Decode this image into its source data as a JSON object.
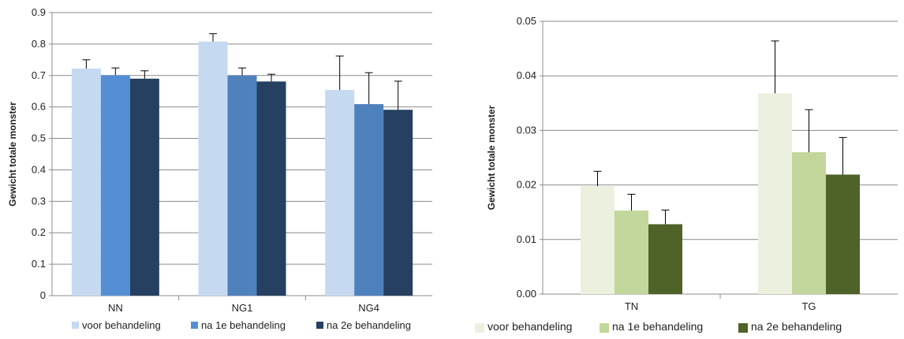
{
  "chart_data": [
    {
      "type": "bar",
      "title": "",
      "xlabel": "",
      "ylabel": "Gewicht totale monster",
      "ylim": [
        0,
        0.9
      ],
      "yticks": [
        "0",
        "0.1",
        "0.2",
        "0.3",
        "0.4",
        "0.5",
        "0.6",
        "0.7",
        "0.8",
        "0.9"
      ],
      "grid": true,
      "legend_position": "bottom",
      "categories": [
        "NN",
        "NG1",
        "NG4"
      ],
      "series": [
        {
          "name": "voor behandeling",
          "color": "#c5d9f1",
          "values": [
            0.722,
            0.808,
            0.654
          ],
          "errors": [
            0.028,
            0.025,
            0.108
          ]
        },
        {
          "name": "na 1e  behandeling",
          "color": "#558ed5",
          "values": [
            0.701,
            0.7,
            0.609
          ],
          "errors": [
            0.023,
            0.024,
            0.1
          ]
        },
        {
          "name": "na 2e  behandeling",
          "color": "#254061",
          "values": [
            0.69,
            0.681,
            0.591
          ],
          "errors": [
            0.025,
            0.023,
            0.091
          ]
        }
      ],
      "legend_colors_note": "",
      "series_colors_by_category": [
        [
          "#c5d9f1",
          "#558ed5",
          "#254061"
        ],
        [
          "#c5d9f1",
          "#4f81bd",
          "#254061"
        ],
        [
          "#c5d9f1",
          "#4f81bd",
          "#254061"
        ]
      ]
    },
    {
      "type": "bar",
      "title": "",
      "xlabel": "",
      "ylabel": "Gewicht totale monster",
      "ylim": [
        0,
        0.05
      ],
      "yticks": [
        "0.00",
        "0.01",
        "0.02",
        "0.03",
        "0.04",
        "0.05"
      ],
      "grid": true,
      "legend_position": "bottom",
      "categories": [
        "TN",
        "TG"
      ],
      "series": [
        {
          "name": "voor behandeling",
          "color": "#ebf1de",
          "values": [
            0.0198,
            0.0368
          ],
          "errors": [
            0.0027,
            0.0096
          ]
        },
        {
          "name": "na 1e  behandeling",
          "color": "#c3d69b",
          "values": [
            0.0153,
            0.026
          ],
          "errors": [
            0.003,
            0.0078
          ]
        },
        {
          "name": "na 2e  behandeling",
          "color": "#4f6228",
          "values": [
            0.0128,
            0.0219
          ],
          "errors": [
            0.0026,
            0.0068
          ]
        }
      ]
    }
  ]
}
